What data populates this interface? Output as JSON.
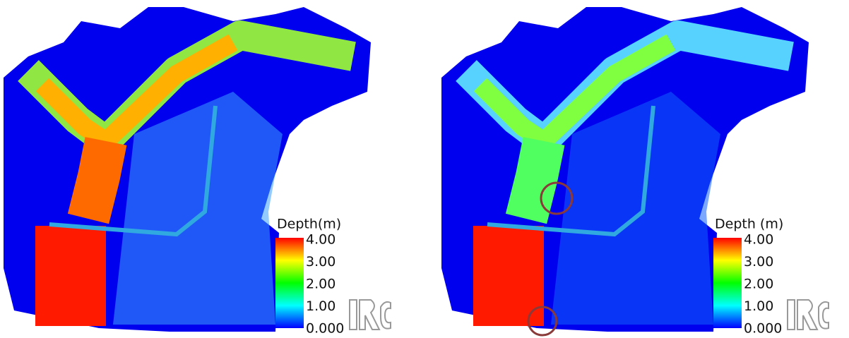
{
  "panels": [
    {
      "legend": {
        "title": "Depth(m)",
        "ticks": [
          "4.00",
          "3.00",
          "2.00",
          "1.00",
          "0.000"
        ]
      }
    },
    {
      "legend": {
        "title": "Depth (m)",
        "ticks": [
          "4.00",
          "3.00",
          "2.00",
          "1.00",
          "0.000"
        ]
      }
    }
  ]
}
